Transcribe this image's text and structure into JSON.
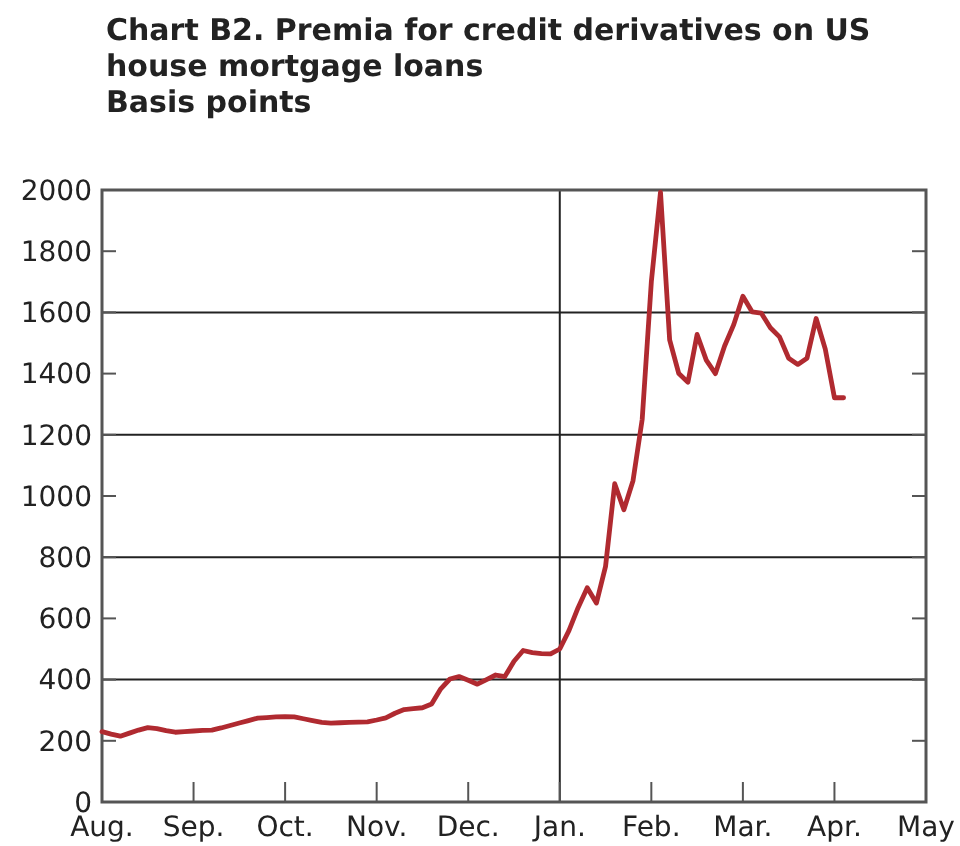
{
  "chart_data": {
    "type": "line",
    "title": "Chart B2. Premia for credit derivatives on US house mortgage loans",
    "subtitle": "Basis points",
    "categories": [
      "Aug.",
      null,
      null,
      null,
      null,
      null,
      null,
      null,
      null,
      null,
      "Sep.",
      null,
      null,
      null,
      null,
      null,
      null,
      null,
      null,
      null,
      "Oct.",
      null,
      null,
      null,
      null,
      null,
      null,
      null,
      null,
      null,
      "Nov.",
      null,
      null,
      null,
      null,
      null,
      null,
      null,
      null,
      null,
      "Dec.",
      null,
      null,
      null,
      null,
      null,
      null,
      null,
      null,
      null,
      "Jan.",
      null,
      null,
      null,
      null,
      null,
      null,
      null,
      null,
      null,
      "Feb.",
      null,
      null,
      null,
      null,
      null,
      null,
      null,
      null,
      null,
      "Mar.",
      null,
      null,
      null,
      null,
      null,
      null,
      null,
      null,
      null,
      "Apr.",
      null,
      null,
      null,
      null,
      null,
      null,
      null,
      null,
      null,
      "May"
    ],
    "ylim": [
      0,
      2000
    ],
    "yticks": [
      0,
      200,
      400,
      600,
      800,
      1000,
      1200,
      1400,
      1600,
      1800,
      2000
    ],
    "grid": "y",
    "ref_lines": [
      {
        "axis": "x",
        "value": "Jan.",
        "label": null
      }
    ],
    "series": [
      {
        "color": "#b02a30",
        "values": [
          230,
          222,
          215,
          225,
          235,
          243,
          240,
          233,
          228,
          230,
          232,
          234,
          235,
          242,
          250,
          258,
          266,
          274,
          276,
          278,
          279,
          278,
          272,
          266,
          260,
          258,
          259,
          260,
          261,
          262,
          268,
          275,
          290,
          302,
          305,
          308,
          320,
          370,
          402,
          410,
          398,
          385,
          400,
          415,
          410,
          460,
          495,
          488,
          485,
          484,
          500,
          560,
          635,
          700,
          650,
          770,
          1040,
          955,
          1050,
          1250,
          1700,
          1993,
          1510,
          1400,
          1372,
          1528,
          1444,
          1400,
          1490,
          1560,
          1653,
          1602,
          1598,
          1550,
          1520,
          1450,
          1430,
          1450,
          1580,
          1480,
          1321,
          1321,
          null,
          null,
          null,
          null,
          null,
          null,
          null,
          null,
          null
        ]
      }
    ]
  }
}
